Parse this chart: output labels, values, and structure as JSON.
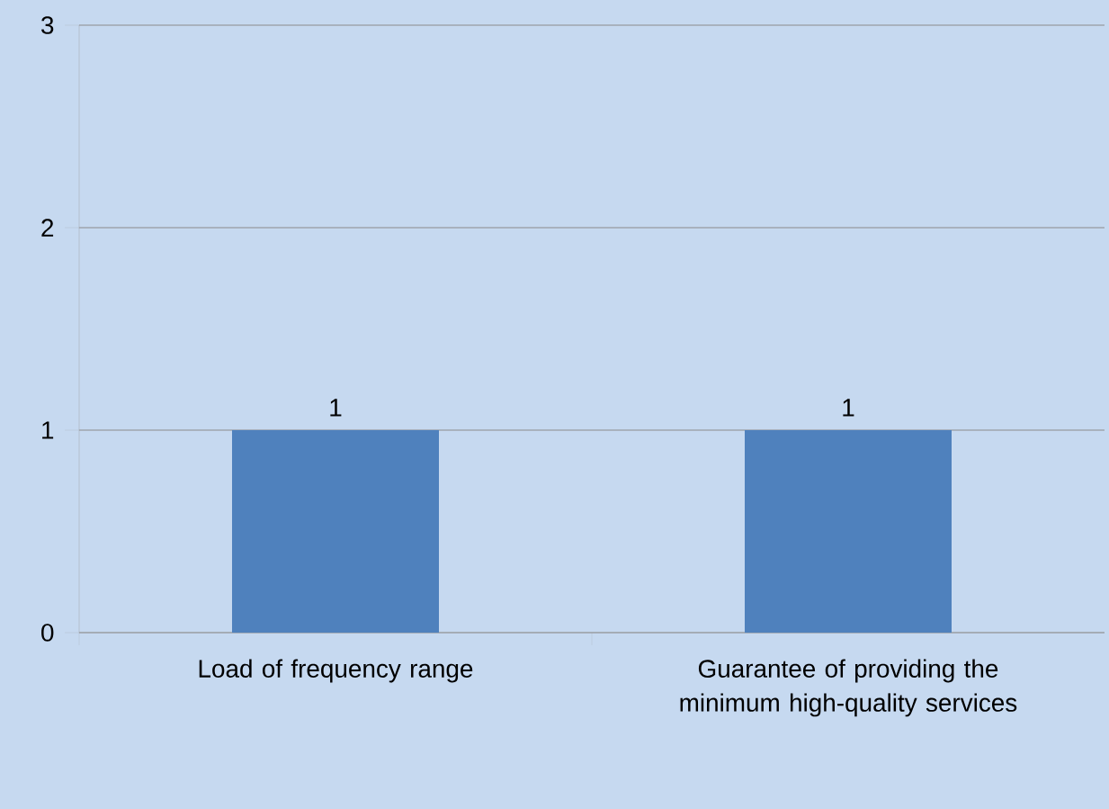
{
  "chart_data": {
    "type": "bar",
    "categories": [
      "Load of frequency range",
      "Guarantee of providing the minimum high-quality services"
    ],
    "values": [
      1,
      1
    ],
    "color": "#4f81bd",
    "ylim": [
      0,
      3
    ],
    "yticks": [
      0,
      1,
      2,
      3
    ],
    "grid": "y",
    "data_labels": true
  }
}
